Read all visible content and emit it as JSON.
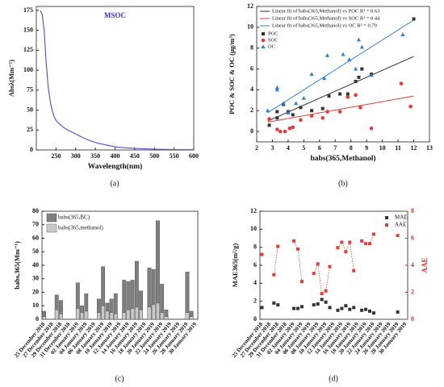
{
  "chart_data": [
    {
      "type": "line",
      "title": "MSOC",
      "caption": "(a)",
      "x_label": "Wavelength(nm)",
      "y_label": "Absλ(Mm⁻¹)",
      "xlim": [
        200,
        600
      ],
      "xticks": [
        250,
        300,
        350,
        400,
        450,
        500,
        550,
        600
      ],
      "ylim": [
        0,
        180
      ],
      "yticks": [
        0,
        25,
        50,
        75,
        100,
        125,
        150,
        175
      ],
      "series": [
        {
          "name": "MSOC",
          "color": "#4b4bd0",
          "x": [
            210,
            215,
            220,
            225,
            230,
            235,
            240,
            245,
            250,
            260,
            270,
            280,
            300,
            320,
            340,
            360,
            380,
            400,
            420,
            450,
            500,
            550,
            600
          ],
          "values": [
            175,
            170,
            150,
            110,
            80,
            62,
            50,
            42,
            37,
            32,
            28,
            25,
            20,
            15,
            11,
            8,
            6,
            4,
            3,
            2,
            1,
            0.5,
            0.3
          ]
        }
      ]
    },
    {
      "type": "scatter",
      "caption": "(b)",
      "x_label": "babs(365,Methanol)",
      "y_label": "POC & SOC & OC (μg/m³)",
      "xlim": [
        2,
        13
      ],
      "xticks": [
        2,
        3,
        4,
        5,
        6,
        7,
        8,
        9,
        10,
        11,
        12,
        13
      ],
      "ylim": [
        -1,
        12
      ],
      "yticks": [
        0,
        2,
        4,
        6,
        8,
        10,
        12
      ],
      "series": [
        {
          "name": "POC",
          "color": "#333333",
          "marker": "square",
          "x": [
            2.8,
            3.3,
            3.3,
            3.7,
            4.0,
            4.3,
            4.8,
            5.5,
            6.2,
            6.6,
            7.3,
            7.8,
            8.3,
            8.5,
            8.7,
            9.3,
            12.0
          ],
          "values": [
            0.6,
            1.3,
            1.9,
            2.6,
            1.9,
            1.6,
            2.3,
            2.0,
            2.2,
            3.4,
            3.6,
            3.6,
            4.8,
            5.2,
            6.0,
            5.5,
            10.8
          ]
        },
        {
          "name": "SOC",
          "color": "#e03c3c",
          "marker": "circle",
          "x": [
            2.8,
            3.3,
            3.5,
            3.8,
            4.1,
            4.3,
            4.8,
            5.5,
            6.2,
            6.5,
            7.3,
            7.8,
            8.3,
            8.6,
            9.3,
            11.2,
            11.8
          ],
          "values": [
            1.2,
            0.2,
            0.0,
            0.0,
            0.3,
            0.4,
            1.1,
            1.5,
            1.3,
            1.9,
            1.9,
            3.3,
            3.5,
            2.3,
            0.3,
            4.6,
            2.4
          ]
        },
        {
          "name": "OC",
          "color": "#2f7fd6",
          "marker": "triangle",
          "x": [
            2.7,
            3.3,
            3.3,
            3.7,
            4.0,
            4.5,
            5.0,
            5.5,
            6.3,
            6.5,
            7.5,
            7.9,
            8.3,
            8.5,
            8.7,
            9.3,
            11.3
          ],
          "values": [
            2.0,
            4.0,
            4.2,
            2.7,
            1.8,
            2.7,
            3.2,
            5.5,
            5.1,
            7.3,
            7.4,
            6.9,
            6.0,
            8.8,
            8.1,
            5.4,
            9.3
          ]
        }
      ],
      "fits": [
        {
          "name": "Linear fit of babs(365,Methanol) vs POC  R² = 0.63",
          "color": "#333333",
          "x": [
            2.7,
            12
          ],
          "values": [
            1.0,
            7.2
          ]
        },
        {
          "name": "Linear fit of babs(365,Methanol) vs SOC  R² = 0.44",
          "color": "#e03c3c",
          "x": [
            2.7,
            12
          ],
          "values": [
            0.9,
            3.4
          ]
        },
        {
          "name": "Linear fit of babs(365,Methanol) vs OC   R² = 0.79",
          "color": "#2f7fd6",
          "x": [
            2.7,
            12
          ],
          "values": [
            1.8,
            10.7
          ]
        }
      ]
    },
    {
      "type": "bar",
      "caption": "(c)",
      "y_label": "babs,365(Mm⁻¹)",
      "ylim": [
        0,
        80
      ],
      "yticks": [
        0,
        10,
        20,
        30,
        40,
        50,
        60,
        70,
        80
      ],
      "categories": [
        "25 December 2018",
        null,
        "27 December 2018",
        null,
        "29 December 2018",
        null,
        "31 December 2018",
        null,
        "02 January 2019",
        null,
        "04 January 2019",
        null,
        "06 January 2019",
        null,
        "08 January 2019",
        null,
        "10 January 2019",
        null,
        "12 January 2019",
        null,
        "14 January 2019",
        null,
        "16 January 2019",
        null,
        "18 January 2019",
        null,
        "20 January 2019",
        null,
        "22 January 2019",
        null,
        "24 January 2019",
        null,
        "26 January 2019",
        null,
        "28 January 2019",
        null,
        "30 January 2019"
      ],
      "series": [
        {
          "name": "babs(365,BC)",
          "color": "#7f7f7f",
          "values": [
            6,
            null,
            null,
            18,
            14,
            null,
            null,
            null,
            27,
            10,
            19,
            null,
            null,
            15,
            39,
            12,
            15,
            19,
            null,
            29,
            28,
            29,
            43,
            21,
            null,
            38,
            37,
            73,
            26,
            7,
            null,
            null,
            null,
            null,
            35,
            6,
            null
          ]
        },
        {
          "name": "babs(365,methanol)",
          "color": "#c8c8c8",
          "values": [
            2,
            null,
            null,
            7,
            4,
            null,
            null,
            null,
            8,
            5,
            6,
            null,
            null,
            5,
            10,
            6,
            5,
            4,
            null,
            5,
            7,
            8,
            9,
            7,
            null,
            9,
            11,
            12,
            5,
            2,
            null,
            null,
            null,
            null,
            5,
            2,
            null
          ]
        }
      ]
    },
    {
      "type": "line",
      "caption": "(d)",
      "y_label": "MAE365(m²/g)",
      "y2_label": "AAE",
      "ylim": [
        0,
        12
      ],
      "yticks": [
        0,
        2,
        4,
        6,
        8,
        10,
        12
      ],
      "y2lim": [
        0,
        8
      ],
      "y2ticks": [
        0,
        2,
        4,
        6,
        8
      ],
      "categories": [
        "25 December 2018",
        null,
        "27 December 2018",
        null,
        "29 December 2018",
        null,
        "31 December 2018",
        null,
        "02 January 2019",
        null,
        "04 January 2019",
        null,
        "06 January 2019",
        null,
        "08 January 2019",
        null,
        "10 January 2019",
        null,
        "12 January 2019",
        null,
        "14 January 2019",
        null,
        "16 January 2019",
        null,
        "18 January 2019",
        null,
        "20 January 2019",
        null,
        "22 January 2019",
        null,
        "24 January 2019",
        null,
        "26 January 2019",
        null,
        "28 January 2019",
        null,
        "30 January 2019"
      ],
      "series": [
        {
          "name": "MAE",
          "color": "#333333",
          "marker": "square",
          "linestyle": "none",
          "values": [
            1.3,
            null,
            null,
            1.8,
            1.6,
            null,
            null,
            null,
            1.2,
            1.2,
            1.4,
            null,
            null,
            1.6,
            1.7,
            2.2,
            1.9,
            1.3,
            null,
            1.0,
            1.2,
            1.5,
            1.1,
            1.3,
            null,
            1.0,
            1.1,
            0.9,
            0.7,
            null,
            null,
            null,
            null,
            null,
            0.8,
            null,
            null
          ]
        },
        {
          "name": "AAE",
          "color": "#d9423c",
          "marker": "square",
          "linestyle": "dotted",
          "axis": "y2",
          "values": [
            4.8,
            null,
            null,
            3.3,
            5.4,
            null,
            null,
            null,
            5.8,
            5.2,
            2.8,
            null,
            null,
            3.4,
            4.1,
            1.9,
            2.1,
            3.9,
            null,
            5.3,
            5.7,
            5.0,
            5.7,
            3.6,
            null,
            5.8,
            5.6,
            5.6,
            6.3,
            null,
            null,
            null,
            null,
            null,
            6.2,
            null,
            null
          ]
        }
      ]
    }
  ]
}
